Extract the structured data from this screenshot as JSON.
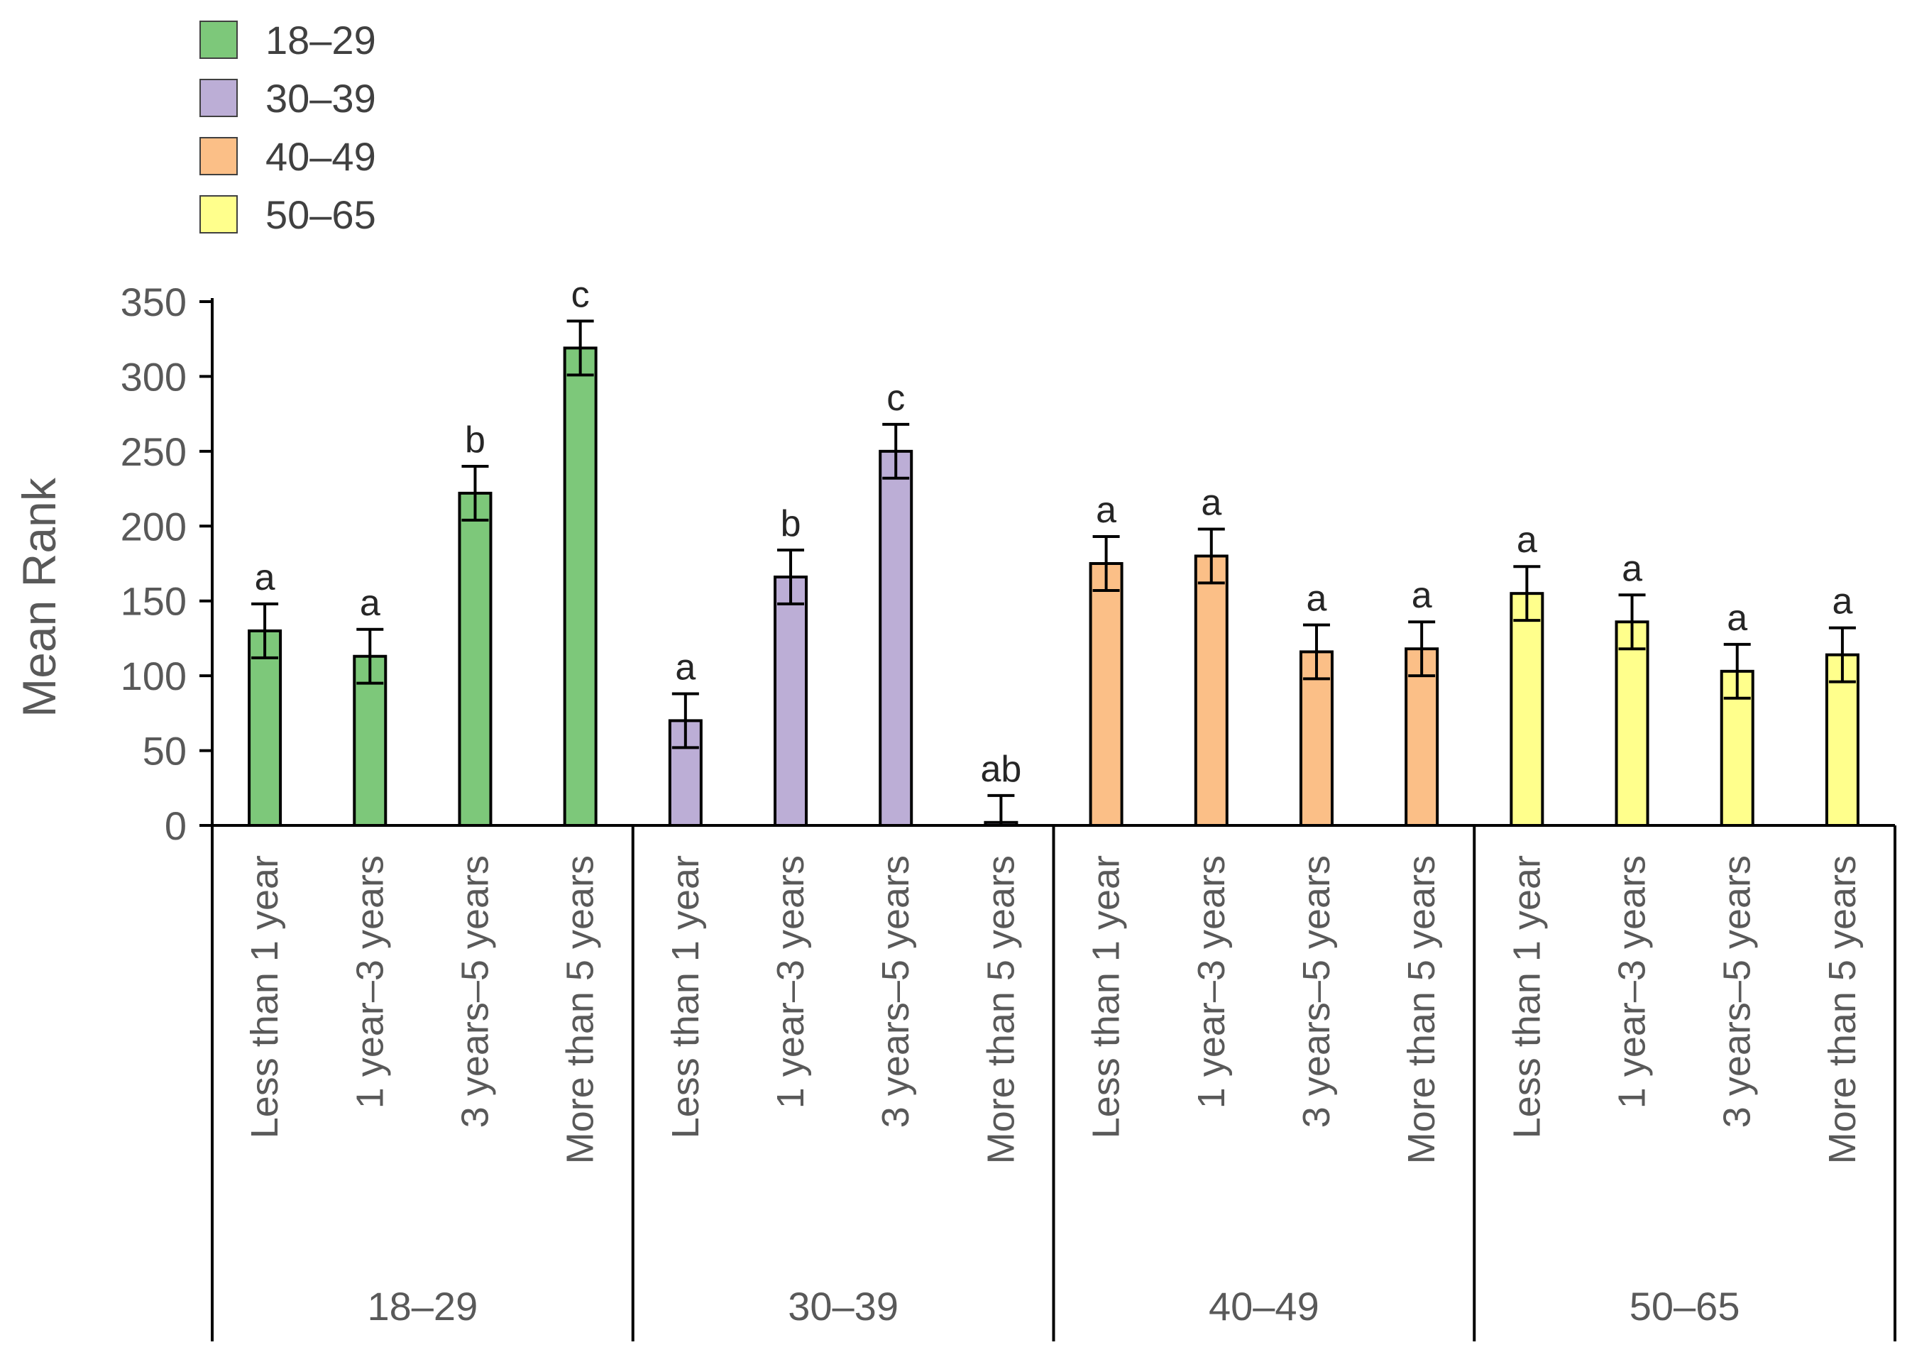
{
  "chart_data": {
    "type": "bar",
    "title": "",
    "xlabel": "",
    "ylabel": "Mean Rank",
    "ylim": [
      0,
      350
    ],
    "yticks": [
      0,
      50,
      100,
      150,
      200,
      250,
      300,
      350
    ],
    "categories": [
      "Less than 1 year",
      "1 year–3 years",
      "3 years–5 years",
      "More than 5 years"
    ],
    "legend_position": "top-left",
    "groups": [
      {
        "name": "18–29",
        "color": "#7dc87a",
        "values": [
          130,
          113,
          222,
          319
        ],
        "errors": [
          18,
          18,
          18,
          18
        ],
        "letters": [
          "a",
          "a",
          "b",
          "c"
        ]
      },
      {
        "name": "30–39",
        "color": "#bcaed6",
        "values": [
          70,
          166,
          250,
          2
        ],
        "errors": [
          18,
          18,
          18,
          18
        ],
        "letters": [
          "a",
          "b",
          "c",
          "ab"
        ]
      },
      {
        "name": "40–49",
        "color": "#fbbf87",
        "values": [
          175,
          180,
          116,
          118
        ],
        "errors": [
          18,
          18,
          18,
          18
        ],
        "letters": [
          "a",
          "a",
          "a",
          "a"
        ]
      },
      {
        "name": "50–65",
        "color": "#ffff8c",
        "values": [
          155,
          136,
          103,
          114
        ],
        "errors": [
          18,
          18,
          18,
          18
        ],
        "letters": [
          "a",
          "a",
          "a",
          "a"
        ]
      }
    ]
  }
}
